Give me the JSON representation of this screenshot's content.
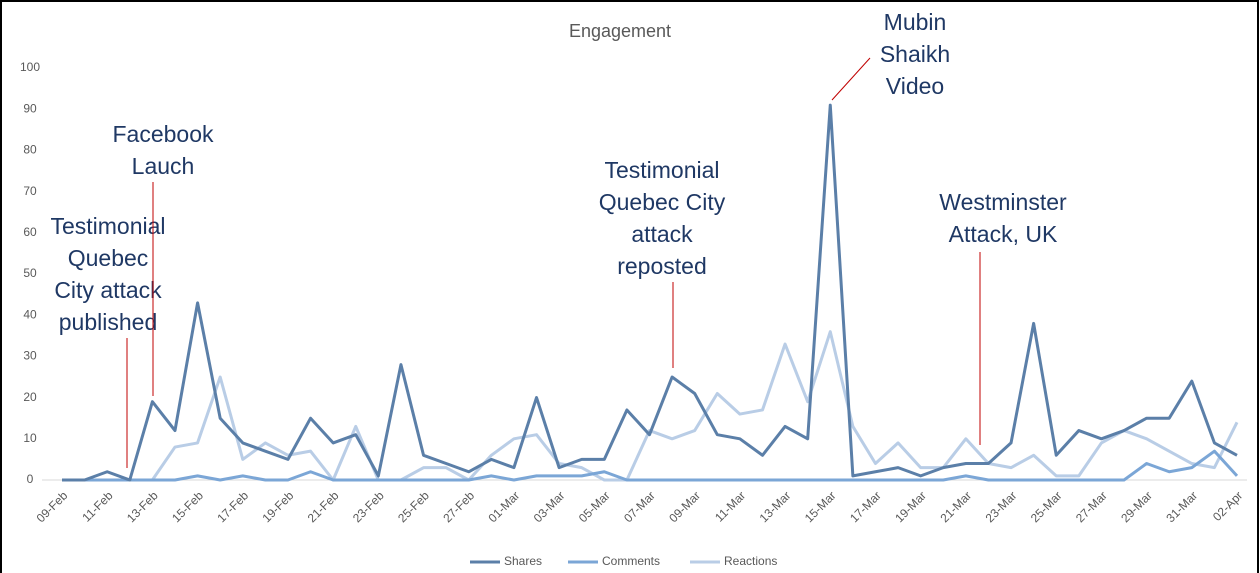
{
  "chart_data": {
    "type": "line",
    "title": "Engagement",
    "categories": [
      "09-Feb",
      null,
      "11-Feb",
      null,
      "13-Feb",
      null,
      "15-Feb",
      null,
      "17-Feb",
      null,
      "19-Feb",
      null,
      "21-Feb",
      null,
      "23-Feb",
      null,
      "25-Feb",
      null,
      "27-Feb",
      null,
      "01-Mar",
      null,
      "03-Mar",
      null,
      "05-Mar",
      null,
      "07-Mar",
      null,
      "09-Mar",
      null,
      "11-Mar",
      null,
      "13-Mar",
      null,
      "15-Mar",
      null,
      "17-Mar",
      null,
      "19-Mar",
      null,
      "21-Mar",
      null,
      "23-Mar",
      null,
      "25-Mar",
      null,
      "27-Mar",
      null,
      "29-Mar",
      null,
      "31-Mar",
      null,
      "02-Apr"
    ],
    "series": [
      {
        "name": "Shares",
        "color": "#5b7fa8",
        "values": [
          0,
          0,
          2,
          0,
          19,
          12,
          43,
          15,
          9,
          7,
          5,
          15,
          9,
          11,
          1,
          28,
          6,
          4,
          2,
          5,
          3,
          20,
          3,
          5,
          5,
          17,
          11,
          25,
          21,
          11,
          10,
          6,
          13,
          10,
          91,
          1,
          2,
          3,
          1,
          3,
          4,
          4,
          9,
          38,
          6,
          12,
          10,
          12,
          15,
          15,
          24,
          9,
          6
        ]
      },
      {
        "name": "Comments",
        "color": "#7ba6d6",
        "values": [
          0,
          0,
          0,
          0,
          0,
          0,
          1,
          0,
          1,
          0,
          0,
          2,
          0,
          0,
          0,
          0,
          0,
          0,
          0,
          1,
          0,
          1,
          1,
          1,
          2,
          0,
          0,
          0,
          0,
          0,
          0,
          0,
          0,
          0,
          0,
          0,
          0,
          0,
          0,
          0,
          1,
          0,
          0,
          0,
          0,
          0,
          0,
          0,
          4,
          2,
          3,
          7,
          1
        ]
      },
      {
        "name": "Reactions",
        "color": "#b9cde6",
        "values": [
          0,
          0,
          0,
          0,
          0,
          8,
          9,
          25,
          5,
          9,
          6,
          7,
          0,
          13,
          0,
          0,
          3,
          3,
          0,
          6,
          10,
          11,
          4,
          3,
          0,
          0,
          12,
          10,
          12,
          21,
          16,
          17,
          33,
          19,
          36,
          13,
          4,
          9,
          3,
          3,
          10,
          4,
          3,
          6,
          1,
          1,
          9,
          12,
          10,
          7,
          4,
          3,
          14
        ]
      }
    ],
    "ylim": [
      0,
      100
    ],
    "yticks": [
      0,
      10,
      20,
      30,
      40,
      50,
      60,
      70,
      80,
      90,
      100
    ],
    "grid": false,
    "legend": "bottom",
    "annotations": [
      {
        "lines": [
          "Testimonial",
          "Quebec",
          "City attack",
          "published"
        ]
      },
      {
        "lines": [
          "Facebook",
          "Lauch"
        ]
      },
      {
        "lines": [
          "Testimonial",
          "Quebec City",
          "attack",
          "reposted"
        ]
      },
      {
        "lines": [
          "Mubin",
          "Shaikh",
          "Video"
        ]
      },
      {
        "lines": [
          "Westminster",
          "Attack, UK"
        ]
      }
    ]
  }
}
